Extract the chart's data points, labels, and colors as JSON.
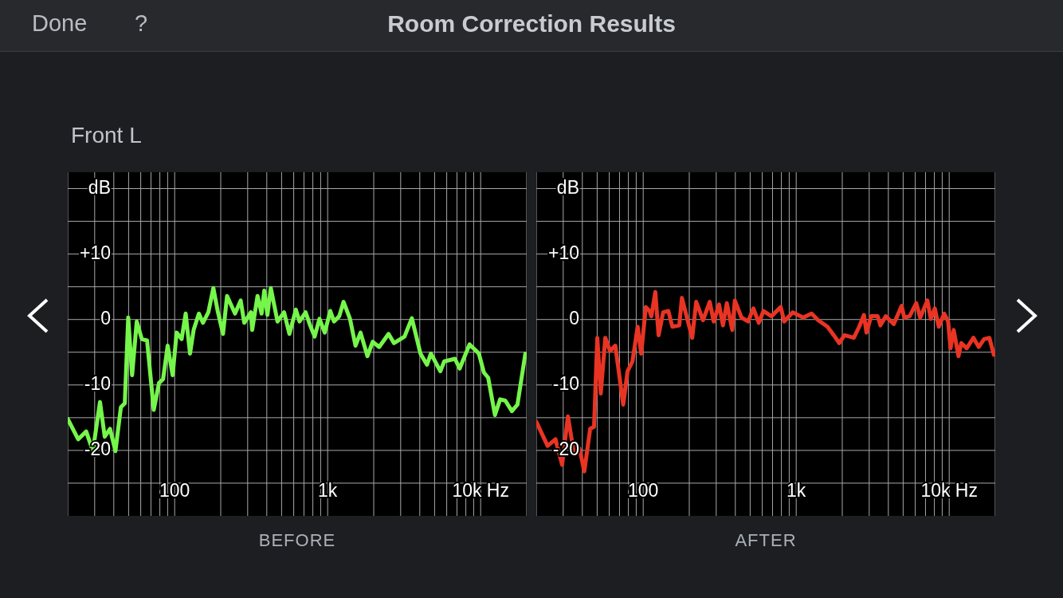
{
  "chart_data": [
    {
      "type": "line",
      "title": "Room Correction Results",
      "subtitle": "Front L",
      "annotations": [
        "Done",
        "?"
      ],
      "xlabel": "BEFORE",
      "log": "x",
      "grid": true,
      "xlim": [
        20,
        20000
      ],
      "xticks": [
        {
          "value": 20,
          "label": null
        },
        {
          "value": 30,
          "label": null
        },
        {
          "value": 40,
          "label": null
        },
        {
          "value": 50,
          "label": null
        },
        {
          "value": 60,
          "label": null
        },
        {
          "value": 70,
          "label": null
        },
        {
          "value": 80,
          "label": null
        },
        {
          "value": 90,
          "label": null
        },
        100,
        {
          "value": 200,
          "label": null
        },
        {
          "value": 300,
          "label": null
        },
        {
          "value": 400,
          "label": null
        },
        {
          "value": 500,
          "label": null
        },
        {
          "value": 600,
          "label": null
        },
        {
          "value": 700,
          "label": null
        },
        {
          "value": 800,
          "label": null
        },
        {
          "value": 900,
          "label": null
        },
        {
          "value": 1000,
          "label": "1k"
        },
        {
          "value": 2000,
          "label": null
        },
        {
          "value": 3000,
          "label": null
        },
        {
          "value": 4000,
          "label": null
        },
        {
          "value": 5000,
          "label": null
        },
        {
          "value": 6000,
          "label": null
        },
        {
          "value": 7000,
          "label": null
        },
        {
          "value": 8000,
          "label": null
        },
        {
          "value": 9000,
          "label": null
        },
        {
          "value": 10000,
          "label": "10k Hz"
        },
        {
          "value": 20000,
          "label": null
        }
      ],
      "ylim": [
        -30,
        22.5
      ],
      "yticks": [
        {
          "value": 20,
          "label": "dB"
        },
        {
          "value": 15,
          "label": null
        },
        {
          "value": 10,
          "label": "+10"
        },
        {
          "value": 5,
          "label": null
        },
        0,
        {
          "value": -5,
          "label": null
        },
        -10,
        {
          "value": -15,
          "label": null
        },
        -20,
        {
          "value": -25,
          "label": null
        }
      ],
      "series": [
        {
          "color": "#76f54b",
          "x": [
            20,
            23.4,
            26.4,
            29.2,
            32.5,
            34.9,
            37.8,
            41,
            44.5,
            47.2,
            49.7,
            52.7,
            56.5,
            61,
            66,
            73,
            79,
            84,
            90,
            97,
            103,
            111,
            118,
            126,
            133,
            144,
            153,
            166,
            179,
            191,
            207,
            220,
            248,
            270,
            285,
            315,
            321,
            348,
            370,
            385,
            404,
            425,
            470,
            519,
            562,
            620,
            655,
            718,
            768,
            822,
            884,
            957,
            1040,
            1100,
            1190,
            1270,
            1400,
            1520,
            1640,
            1820,
            1970,
            2170,
            2500,
            2710,
            3180,
            3550,
            4040,
            4460,
            4730,
            5450,
            5780,
            6790,
            7290,
            8460,
            9730,
            10500,
            11200,
            12400,
            13400,
            14500,
            16000,
            17400,
            19600
          ],
          "values": [
            -15.2,
            -18.3,
            -17.1,
            -20.1,
            -12.6,
            -17.9,
            -16.7,
            -20.1,
            -13.4,
            -12.8,
            0.3,
            -8.5,
            -0.3,
            -3,
            -3.2,
            -13.8,
            -9.7,
            -9.1,
            -4,
            -8.5,
            -2,
            -3,
            0.9,
            -5.2,
            -1.6,
            0.9,
            -0.5,
            1.1,
            4.8,
            1.3,
            -2.2,
            3.6,
            0.9,
            2.9,
            -0.5,
            1.1,
            -1.6,
            3.6,
            0.9,
            4.4,
            0.7,
            4.8,
            -0.3,
            1.1,
            -2.2,
            1.5,
            -0.3,
            1.1,
            -0.9,
            -2.6,
            0.1,
            -2,
            1.3,
            -0.3,
            0.5,
            2.7,
            0.1,
            -4,
            -2,
            -5.6,
            -3.4,
            -4.2,
            -2.2,
            -3.6,
            -2.6,
            0.2,
            -5.2,
            -6.9,
            -5.2,
            -7.9,
            -6.4,
            -6,
            -7.5,
            -3.8,
            -5.2,
            -8.1,
            -8.9,
            -14.6,
            -12.2,
            -12.4,
            -14,
            -13,
            -5.2
          ]
        }
      ]
    },
    {
      "type": "line",
      "xlabel": "AFTER",
      "log": "x",
      "grid": true,
      "xlim": [
        20,
        20000
      ],
      "xticks": [
        {
          "value": 20,
          "label": null
        },
        {
          "value": 30,
          "label": null
        },
        {
          "value": 40,
          "label": null
        },
        {
          "value": 50,
          "label": null
        },
        {
          "value": 60,
          "label": null
        },
        {
          "value": 70,
          "label": null
        },
        {
          "value": 80,
          "label": null
        },
        {
          "value": 90,
          "label": null
        },
        100,
        {
          "value": 200,
          "label": null
        },
        {
          "value": 300,
          "label": null
        },
        {
          "value": 400,
          "label": null
        },
        {
          "value": 500,
          "label": null
        },
        {
          "value": 600,
          "label": null
        },
        {
          "value": 700,
          "label": null
        },
        {
          "value": 800,
          "label": null
        },
        {
          "value": 900,
          "label": null
        },
        {
          "value": 1000,
          "label": "1k"
        },
        {
          "value": 2000,
          "label": null
        },
        {
          "value": 3000,
          "label": null
        },
        {
          "value": 4000,
          "label": null
        },
        {
          "value": 5000,
          "label": null
        },
        {
          "value": 6000,
          "label": null
        },
        {
          "value": 7000,
          "label": null
        },
        {
          "value": 8000,
          "label": null
        },
        {
          "value": 9000,
          "label": null
        },
        {
          "value": 10000,
          "label": "10k Hz"
        },
        {
          "value": 20000,
          "label": null
        }
      ],
      "ylim": [
        -30,
        22.5
      ],
      "yticks": [
        {
          "value": 20,
          "label": "dB"
        },
        {
          "value": 15,
          "label": null
        },
        {
          "value": 10,
          "label": "+10"
        },
        {
          "value": 5,
          "label": null
        },
        0,
        {
          "value": -5,
          "label": null
        },
        -10,
        {
          "value": -15,
          "label": null
        },
        -20,
        {
          "value": -25,
          "label": null
        }
      ],
      "series": [
        {
          "color": "#e93424",
          "x": [
            20,
            23.7,
            26.7,
            29.5,
            32.2,
            35.4,
            38.3,
            41.2,
            45,
            47.7,
            50.1,
            52.8,
            56.5,
            60.6,
            65.7,
            74,
            79,
            85,
            92,
            97,
            104,
            110,
            113,
            120,
            126,
            135,
            146,
            155,
            172,
            179,
            193,
            209,
            222,
            246,
            272,
            289,
            313,
            332,
            352,
            382,
            397,
            439,
            485,
            525,
            569,
            611,
            689,
            792,
            834,
            948,
            1110,
            1260,
            1390,
            1600,
            1760,
            1910,
            2070,
            2380,
            2580,
            2770,
            2880,
            3090,
            3410,
            3550,
            3850,
            4340,
            4890,
            5080,
            5510,
            6090,
            6460,
            7200,
            7580,
            8050,
            8550,
            9270,
            9840,
            10200,
            10700,
            11500,
            12000,
            13000,
            14400,
            15600,
            16900,
            18300,
            19600
          ],
          "values": [
            -15.6,
            -19.3,
            -18.3,
            -22.2,
            -14.8,
            -20.7,
            -19.7,
            -23.2,
            -16.7,
            -16.4,
            -2.8,
            -11.3,
            -2.8,
            -4.8,
            -4,
            -13,
            -7.9,
            -6.4,
            -1.1,
            -5.2,
            1.9,
            1.3,
            0.5,
            4.2,
            -2.4,
            1.1,
            1.3,
            -1.1,
            -0.9,
            3.3,
            0.3,
            -2.8,
            2.7,
            -0.1,
            2.7,
            -0.3,
            2.3,
            -0.9,
            2.5,
            -1.6,
            2.9,
            0.3,
            -0.3,
            1.7,
            -0.5,
            1.3,
            0.5,
            1.9,
            -0.3,
            1.1,
            0.3,
            0.9,
            -0.1,
            -1.1,
            -2.4,
            -3.6,
            -2.4,
            -2.8,
            -1.1,
            0.7,
            -2,
            0.5,
            0.5,
            -0.9,
            0.5,
            -0.7,
            2.1,
            0.3,
            0.5,
            2.5,
            0.3,
            2.9,
            0.1,
            1.7,
            -1.1,
            0.9,
            -0.3,
            -4.4,
            -1.6,
            -5.6,
            -3.6,
            -4.4,
            -2.8,
            -4.2,
            -3,
            -2.8,
            -5.4
          ]
        }
      ]
    }
  ]
}
